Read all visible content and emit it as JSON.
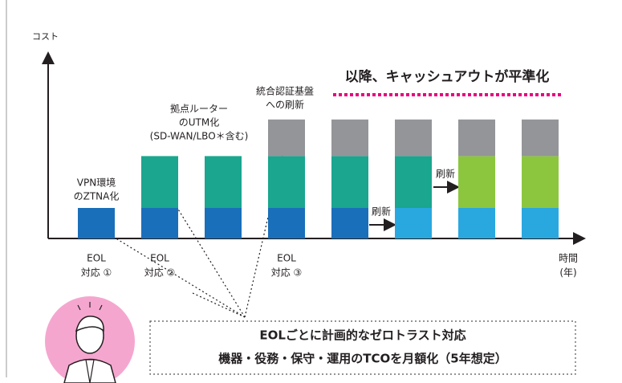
{
  "chart_data": {
    "type": "bar",
    "stacked": true,
    "y_label": "コスト",
    "x_label": [
      "時間",
      "(年)"
    ],
    "categories": [
      null,
      null,
      null,
      null,
      null,
      null,
      null,
      null
    ],
    "ylim": [
      0,
      6
    ],
    "series": [
      {
        "color": "#1a6fba",
        "values": [
          1,
          1,
          1,
          1,
          1,
          null,
          null,
          null
        ]
      },
      {
        "color": "#29a8e0",
        "values": [
          null,
          null,
          null,
          null,
          null,
          1,
          1,
          1
        ]
      },
      {
        "color": "#1aa68f",
        "values": [
          null,
          1.7,
          1.7,
          1.7,
          1.7,
          1.7,
          null,
          null
        ]
      },
      {
        "color": "#8cc63f",
        "values": [
          null,
          null,
          null,
          null,
          null,
          null,
          1.7,
          1.7
        ]
      },
      {
        "color": "#939598",
        "values": [
          null,
          null,
          null,
          1.2,
          1.2,
          1.2,
          1.2,
          1.2
        ]
      }
    ],
    "headline": "以降、キャッシュアウトが平準化",
    "eol_labels": [
      [
        "EOL",
        "対応 ①"
      ],
      [
        "EOL",
        "対応 ②"
      ],
      [
        "EOL",
        "対応 ③"
      ]
    ],
    "renew_labels": [
      "刷新",
      "刷新"
    ],
    "callouts": [
      [
        "VPN環境",
        "のZTNA化"
      ],
      [
        "拠点ルーター",
        "のUTM化",
        "(SD-WAN/LBO＊含む)"
      ],
      [
        "統合認証基盤",
        "への刷新"
      ]
    ],
    "summary": [
      "EOLごとに計画的なゼロトラスト対応",
      "機器・役務・保守・運用のTCOを月額化（5年想定）"
    ]
  }
}
